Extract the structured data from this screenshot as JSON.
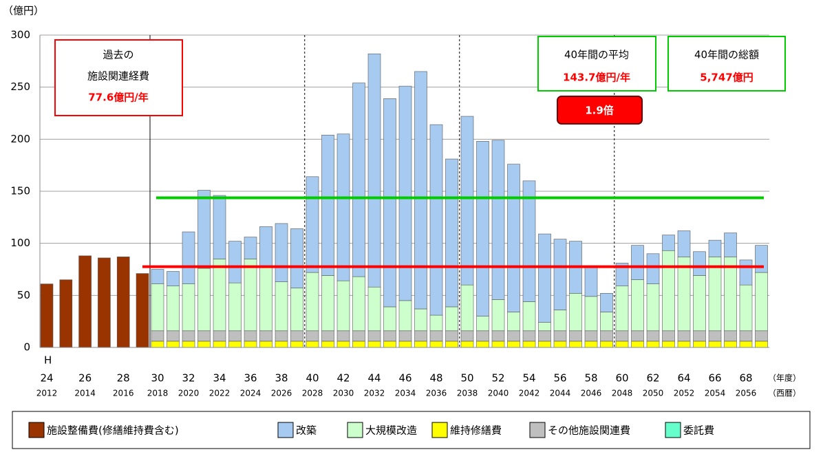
{
  "chart_data": {
    "type": "stacked_bar",
    "y_unit_label": "（億円）",
    "era_prefix": "H",
    "x_unit_labels": [
      "（年度）",
      "（西暦）"
    ],
    "categories_era": [
      "24",
      null,
      "26",
      null,
      "28",
      null,
      "30",
      null,
      "32",
      null,
      "34",
      null,
      "36",
      null,
      "38",
      null,
      "40",
      null,
      "42",
      null,
      "44",
      null,
      "46",
      null,
      "48",
      null,
      "50",
      null,
      "52",
      null,
      "54",
      null,
      "56",
      null,
      "58",
      null,
      "60",
      null,
      "62",
      null,
      "64",
      null,
      "66",
      null,
      "68",
      null
    ],
    "categories": [
      "2012",
      null,
      "2014",
      null,
      "2016",
      null,
      "2018",
      null,
      "2020",
      null,
      "2022",
      null,
      "2024",
      null,
      "2026",
      null,
      "2028",
      null,
      "2030",
      null,
      "2032",
      null,
      "2034",
      null,
      "2036",
      null,
      "2038",
      null,
      "2040",
      null,
      "2042",
      null,
      "2044",
      null,
      "2046",
      null,
      "2048",
      null,
      "2050",
      null,
      "2052",
      null,
      "2054",
      null,
      "2056",
      null
    ],
    "ylim": [
      0,
      300
    ],
    "yticks": [
      0,
      50,
      100,
      150,
      200,
      250,
      300
    ],
    "grid": true,
    "series": [
      {
        "name": "施設整備費(修繕維持費含む)",
        "color": "#993300",
        "values": [
          61,
          65,
          88,
          86,
          87,
          71,
          null,
          null,
          null,
          null,
          null,
          null,
          null,
          null,
          null,
          null,
          null,
          null,
          null,
          null,
          null,
          null,
          null,
          null,
          null,
          null,
          null,
          null,
          null,
          null,
          null,
          null,
          null,
          null,
          null,
          null,
          null,
          null,
          null,
          null,
          null,
          null,
          null,
          null,
          null,
          null
        ]
      },
      {
        "name": "維持修繕費",
        "color": "#ffff00",
        "values": [
          null,
          null,
          null,
          null,
          null,
          null,
          6,
          6,
          6,
          6,
          6,
          6,
          6,
          6,
          6,
          6,
          6,
          6,
          6,
          6,
          6,
          6,
          6,
          6,
          6,
          6,
          6,
          6,
          6,
          6,
          6,
          6,
          6,
          6,
          6,
          6,
          6,
          6,
          6,
          6,
          6,
          6,
          6,
          6,
          6,
          6
        ]
      },
      {
        "name": "その他施設関連費",
        "color": "#bfbfbf",
        "values": [
          null,
          null,
          null,
          null,
          null,
          null,
          10,
          10,
          10,
          10,
          10,
          10,
          10,
          10,
          10,
          10,
          10,
          10,
          10,
          10,
          10,
          10,
          10,
          10,
          10,
          10,
          10,
          10,
          10,
          10,
          10,
          10,
          10,
          10,
          10,
          10,
          10,
          10,
          10,
          10,
          10,
          10,
          10,
          10,
          10,
          10
        ]
      },
      {
        "name": "大規模改造",
        "color": "#ccffcc",
        "values": [
          null,
          null,
          null,
          null,
          null,
          null,
          45,
          43,
          45,
          60,
          69,
          46,
          69,
          61,
          47,
          41,
          56,
          53,
          48,
          52,
          42,
          23,
          29,
          21,
          15,
          23,
          44,
          14,
          30,
          18,
          28,
          8,
          20,
          36,
          33,
          18,
          43,
          49,
          45,
          77,
          71,
          53,
          71,
          71,
          44,
          56
        ]
      },
      {
        "name": "改築",
        "color": "#a6caf0",
        "values": [
          null,
          null,
          null,
          null,
          null,
          null,
          14,
          14,
          50,
          75,
          61,
          40,
          21,
          39,
          56,
          57,
          92,
          135,
          141,
          186,
          224,
          200,
          206,
          228,
          183,
          142,
          162,
          168,
          153,
          142,
          116,
          85,
          68,
          50,
          28,
          18,
          22,
          33,
          29,
          15,
          25,
          23,
          16,
          23,
          24,
          26
        ]
      },
      {
        "name": "委託費",
        "color": "#66ffcc",
        "values": [
          null,
          null,
          null,
          null,
          null,
          null,
          null,
          null,
          null,
          null,
          null,
          null,
          null,
          null,
          null,
          null,
          null,
          null,
          null,
          null,
          null,
          null,
          null,
          null,
          null,
          null,
          null,
          null,
          null,
          null,
          null,
          null,
          null,
          null,
          null,
          null,
          null,
          null,
          null,
          null,
          null,
          null,
          null,
          null,
          null,
          null
        ]
      }
    ],
    "reference_lines": [
      {
        "value": 77.6,
        "color": "#ff0000"
      },
      {
        "value": 143.7,
        "color": "#00cc00"
      }
    ],
    "annotations": {
      "past": {
        "lines": [
          "過去の",
          "施設関連経費"
        ],
        "value_text": "77.6億円/年"
      },
      "average": {
        "title": "40年間の平均",
        "value_text": "143.7億円/年"
      },
      "total": {
        "title": "40年間の総額",
        "value_text": "5,747億円"
      },
      "ratio": "1.9倍"
    }
  }
}
